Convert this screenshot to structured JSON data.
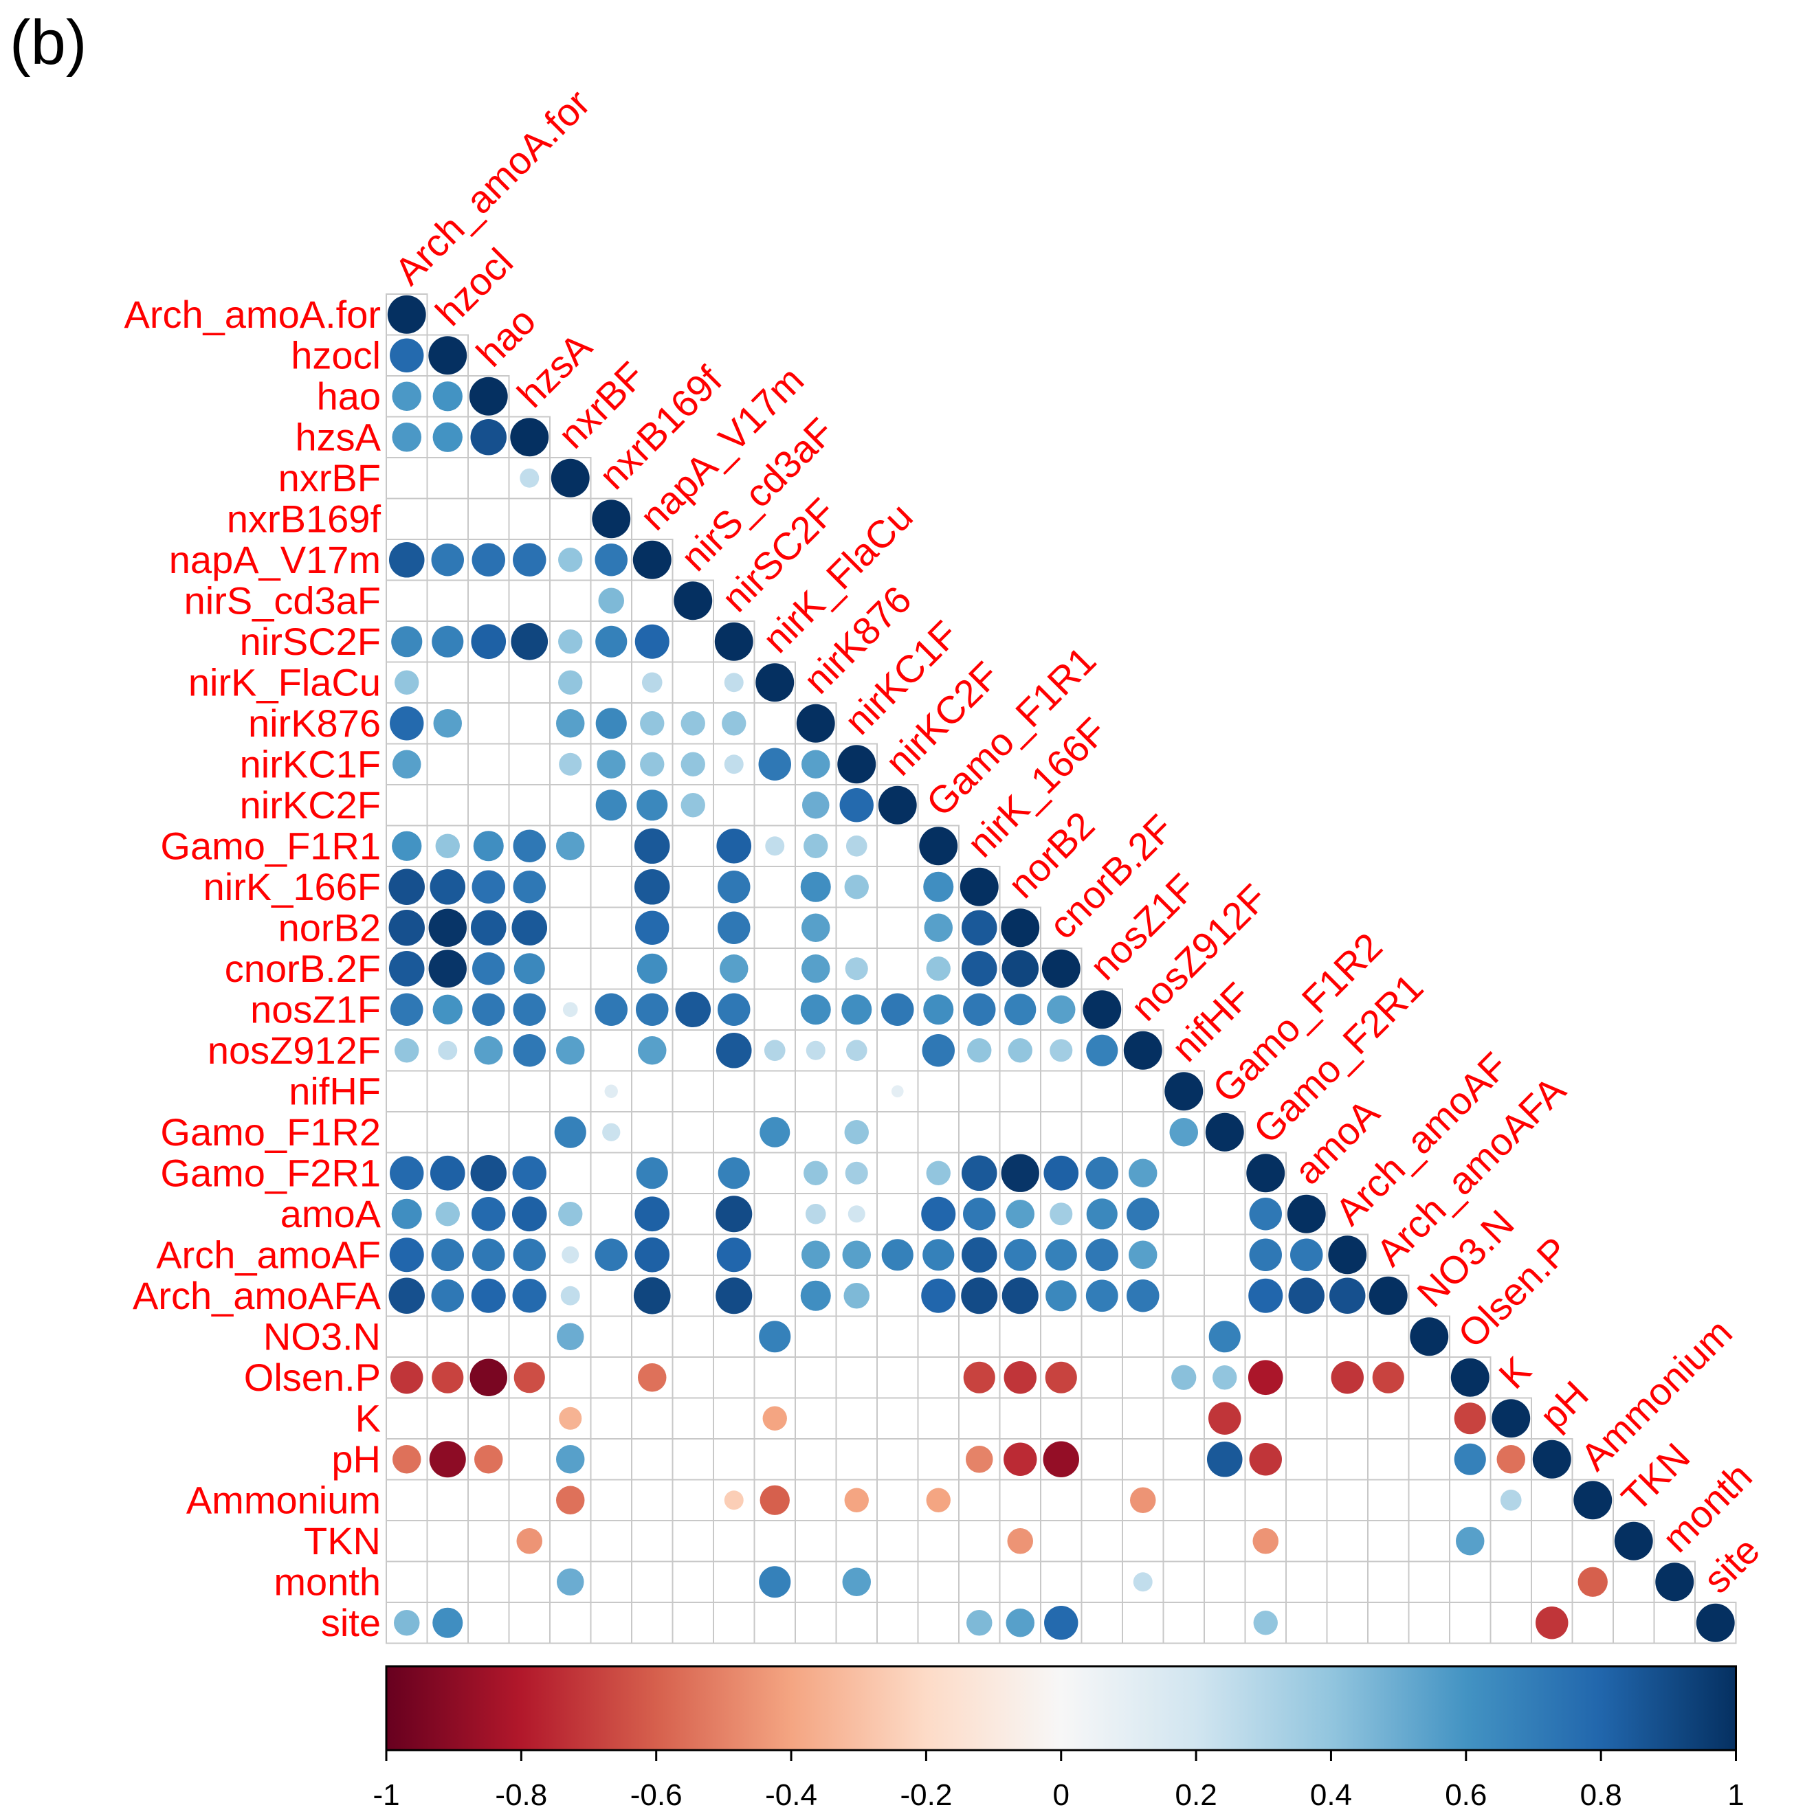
{
  "panel_label": "(b)",
  "chart_data": {
    "type": "heatmap",
    "subtype": "correlation-circle-lower-triangle",
    "title": "",
    "variables": [
      "Arch_amoA.for",
      "hzocl",
      "hao",
      "hzsA",
      "nxrBF",
      "nxrB169f",
      "napA_V17m",
      "nirS_cd3aF",
      "nirSC2F",
      "nirK_FlaCu",
      "nirK876",
      "nirKC1F",
      "nirKC2F",
      "Gamo_F1R1",
      "nirK_166F",
      "norB2",
      "cnorB.2F",
      "nosZ1F",
      "nosZ912F",
      "nifHF",
      "Gamo_F1R2",
      "Gamo_F2R1",
      "amoA",
      "Arch_amoAF",
      "Arch_amoAFA",
      "NO3.N",
      "Olsen.P",
      "K",
      "pH",
      "Ammonium",
      "TKN",
      "month",
      "site"
    ],
    "correlations": [
      [
        1
      ],
      [
        0.78,
        1
      ],
      [
        0.58,
        0.6,
        1
      ],
      [
        0.58,
        0.6,
        0.88,
        1
      ],
      [
        null,
        null,
        null,
        0.25,
        1
      ],
      [
        null,
        null,
        null,
        null,
        null,
        1
      ],
      [
        0.85,
        0.72,
        0.75,
        0.75,
        0.4,
        0.72,
        1
      ],
      [
        null,
        null,
        null,
        null,
        null,
        0.45,
        null,
        1
      ],
      [
        0.65,
        0.68,
        0.82,
        0.92,
        0.4,
        0.68,
        0.8,
        null,
        1
      ],
      [
        0.4,
        null,
        null,
        null,
        0.4,
        null,
        0.28,
        null,
        0.25,
        1
      ],
      [
        0.78,
        0.55,
        null,
        null,
        0.55,
        0.65,
        0.4,
        0.4,
        0.4,
        null,
        1
      ],
      [
        0.55,
        null,
        null,
        null,
        0.35,
        0.55,
        0.4,
        0.4,
        0.25,
        0.72,
        0.55,
        1
      ],
      [
        null,
        null,
        null,
        null,
        null,
        0.65,
        0.65,
        0.4,
        null,
        null,
        0.5,
        0.78,
        1
      ],
      [
        0.6,
        0.4,
        0.62,
        0.72,
        0.55,
        null,
        0.85,
        null,
        0.82,
        0.25,
        0.4,
        0.3,
        null,
        1
      ],
      [
        0.88,
        0.85,
        0.75,
        0.72,
        null,
        null,
        0.85,
        null,
        0.72,
        null,
        0.62,
        0.4,
        null,
        0.62,
        1
      ],
      [
        0.88,
        0.98,
        0.85,
        0.85,
        null,
        null,
        0.78,
        null,
        0.72,
        null,
        0.55,
        null,
        null,
        0.55,
        0.85,
        1
      ],
      [
        0.85,
        0.98,
        0.72,
        0.65,
        null,
        null,
        0.62,
        null,
        0.55,
        null,
        0.55,
        0.35,
        null,
        0.4,
        0.85,
        0.92,
        1
      ],
      [
        0.72,
        0.6,
        0.72,
        0.72,
        0.15,
        0.72,
        0.72,
        0.85,
        0.72,
        null,
        0.62,
        0.62,
        0.72,
        0.62,
        0.72,
        0.68,
        0.55,
        1
      ],
      [
        0.4,
        0.25,
        0.55,
        0.72,
        0.55,
        null,
        0.55,
        null,
        0.85,
        0.3,
        0.25,
        0.3,
        null,
        0.72,
        0.4,
        0.4,
        0.35,
        0.68,
        1
      ],
      [
        null,
        null,
        null,
        null,
        null,
        0.12,
        null,
        null,
        null,
        null,
        null,
        null,
        0.1,
        null,
        null,
        null,
        null,
        null,
        null,
        1
      ],
      [
        null,
        null,
        null,
        null,
        0.68,
        0.22,
        null,
        null,
        null,
        0.62,
        null,
        0.4,
        null,
        null,
        null,
        null,
        null,
        null,
        null,
        0.55,
        1
      ],
      [
        0.78,
        0.82,
        0.88,
        0.78,
        null,
        null,
        0.68,
        null,
        0.68,
        null,
        0.4,
        0.35,
        null,
        0.4,
        0.85,
        0.98,
        0.82,
        0.72,
        0.55,
        null,
        null,
        1
      ],
      [
        0.62,
        0.4,
        0.78,
        0.82,
        0.4,
        null,
        0.82,
        null,
        0.9,
        null,
        0.28,
        0.2,
        null,
        0.8,
        0.72,
        0.55,
        0.35,
        0.65,
        0.72,
        null,
        null,
        0.72,
        1
      ],
      [
        0.8,
        0.72,
        0.72,
        0.72,
        0.2,
        0.72,
        0.82,
        null,
        0.8,
        null,
        0.55,
        0.55,
        0.68,
        0.68,
        0.85,
        0.7,
        0.68,
        0.72,
        0.55,
        null,
        null,
        0.72,
        0.72,
        1
      ],
      [
        0.88,
        0.72,
        0.8,
        0.78,
        0.25,
        null,
        0.92,
        null,
        0.9,
        null,
        0.62,
        0.45,
        null,
        0.8,
        0.9,
        0.9,
        0.65,
        0.7,
        0.72,
        null,
        null,
        0.8,
        0.88,
        0.88,
        1
      ],
      [
        null,
        null,
        null,
        null,
        0.5,
        null,
        null,
        null,
        null,
        0.68,
        null,
        null,
        null,
        null,
        null,
        null,
        null,
        null,
        null,
        null,
        0.68,
        null,
        null,
        null,
        null,
        1
      ],
      [
        -0.72,
        -0.68,
        -0.95,
        -0.65,
        null,
        null,
        -0.55,
        null,
        null,
        null,
        null,
        null,
        null,
        null,
        -0.68,
        -0.72,
        -0.68,
        null,
        null,
        0.42,
        0.4,
        -0.82,
        null,
        -0.72,
        -0.68,
        null,
        1
      ],
      [
        null,
        null,
        null,
        null,
        -0.35,
        null,
        null,
        null,
        null,
        -0.4,
        null,
        null,
        null,
        null,
        null,
        null,
        null,
        null,
        null,
        null,
        -0.72,
        null,
        null,
        null,
        null,
        null,
        -0.68,
        1
      ],
      [
        -0.55,
        -0.9,
        -0.55,
        null,
        0.55,
        null,
        null,
        null,
        null,
        null,
        null,
        null,
        null,
        null,
        -0.5,
        -0.75,
        -0.88,
        null,
        null,
        null,
        0.85,
        -0.72,
        null,
        null,
        null,
        null,
        0.68,
        -0.55,
        1
      ],
      [
        null,
        null,
        null,
        null,
        -0.55,
        null,
        null,
        null,
        -0.25,
        -0.6,
        null,
        -0.4,
        null,
        -0.4,
        null,
        null,
        null,
        null,
        -0.45,
        null,
        null,
        null,
        null,
        null,
        null,
        null,
        null,
        0.3,
        null,
        1
      ],
      [
        null,
        null,
        null,
        -0.45,
        null,
        null,
        null,
        null,
        null,
        null,
        null,
        null,
        null,
        null,
        null,
        -0.45,
        null,
        null,
        null,
        null,
        null,
        -0.45,
        null,
        null,
        null,
        null,
        0.55,
        null,
        null,
        null,
        1
      ],
      [
        null,
        null,
        null,
        null,
        0.5,
        null,
        null,
        null,
        null,
        0.68,
        null,
        0.55,
        null,
        null,
        null,
        null,
        null,
        null,
        0.25,
        null,
        null,
        null,
        null,
        null,
        null,
        null,
        null,
        null,
        null,
        -0.6,
        null,
        1
      ],
      [
        0.45,
        0.62,
        null,
        null,
        null,
        null,
        null,
        null,
        null,
        null,
        null,
        null,
        null,
        null,
        0.45,
        0.55,
        0.78,
        null,
        null,
        null,
        null,
        0.4,
        null,
        null,
        null,
        null,
        null,
        null,
        -0.72,
        null,
        null,
        null,
        1
      ]
    ],
    "colorbar": {
      "range": [
        -1,
        1
      ],
      "ticks": [
        "-1",
        "-0.8",
        "-0.6",
        "-0.4",
        "-0.2",
        "0",
        "0.2",
        "0.4",
        "0.6",
        "0.8",
        "1"
      ],
      "tick_values": [
        -1,
        -0.8,
        -0.6,
        -0.4,
        -0.2,
        0,
        0.2,
        0.4,
        0.6,
        0.8,
        1
      ],
      "colors": [
        "#67001f",
        "#b2182b",
        "#d6604d",
        "#f4a582",
        "#fddbc7",
        "#f7f7f7",
        "#d1e5f0",
        "#92c5de",
        "#4393c3",
        "#2166ac",
        "#053061"
      ]
    },
    "grid": true,
    "legend_position": "bottom",
    "label_color": "#ff0000"
  }
}
